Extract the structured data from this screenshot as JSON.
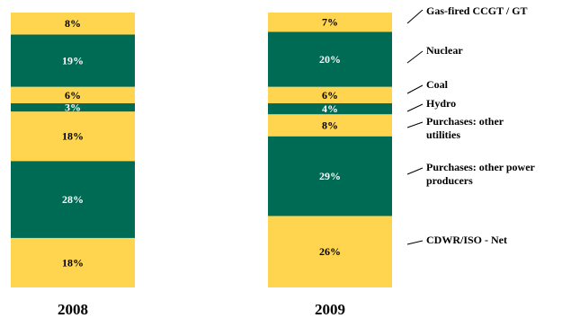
{
  "chart_data": {
    "type": "bar",
    "stacked": true,
    "categories": [
      "2008",
      "2009"
    ],
    "series": [
      {
        "name": "CDWR/ISO - Net",
        "values": [
          18,
          26
        ],
        "color": "#FFD54F"
      },
      {
        "name": "Purchases: other power producers",
        "values": [
          28,
          29
        ],
        "color": "#006B54"
      },
      {
        "name": "Purchases: other utilities",
        "values": [
          18,
          8
        ],
        "color": "#FFD54F"
      },
      {
        "name": "Hydro",
        "values": [
          3,
          4
        ],
        "color": "#006B54"
      },
      {
        "name": "Coal",
        "values": [
          6,
          6
        ],
        "color": "#FFD54F"
      },
      {
        "name": "Nuclear",
        "values": [
          19,
          20
        ],
        "color": "#006B54"
      },
      {
        "name": "Gas-fired CCGT / GT",
        "values": [
          8,
          7
        ],
        "color": "#FFD54F"
      }
    ],
    "data_labels": [
      [
        "18%",
        "28%",
        "18%",
        "3%",
        "6%",
        "19%",
        "8%"
      ],
      [
        "26%",
        "29%",
        "8%",
        "4%",
        "6%",
        "20%",
        "7%"
      ]
    ],
    "legend": [
      {
        "text": "Gas-fired CCGT / GT",
        "line": "Gas-fired"
      },
      {
        "text": "Nuclear",
        "line": "Nuclear"
      },
      {
        "text": "Coal",
        "line": "Coal"
      },
      {
        "text": "Hydro",
        "line": "Hydro"
      },
      {
        "text": "Purchases: other utilities",
        "lines": [
          "Purchases: other",
          "utilities"
        ]
      },
      {
        "text": "Purchases: other power producers",
        "lines": [
          "Purchases: other power",
          "producers"
        ]
      },
      {
        "text": "CDWR/ISO - Net",
        "line": "CDWR/ISO - Net"
      }
    ],
    "legend_position": "right",
    "title": "",
    "xlabel": "",
    "ylabel": "",
    "grid": false
  }
}
